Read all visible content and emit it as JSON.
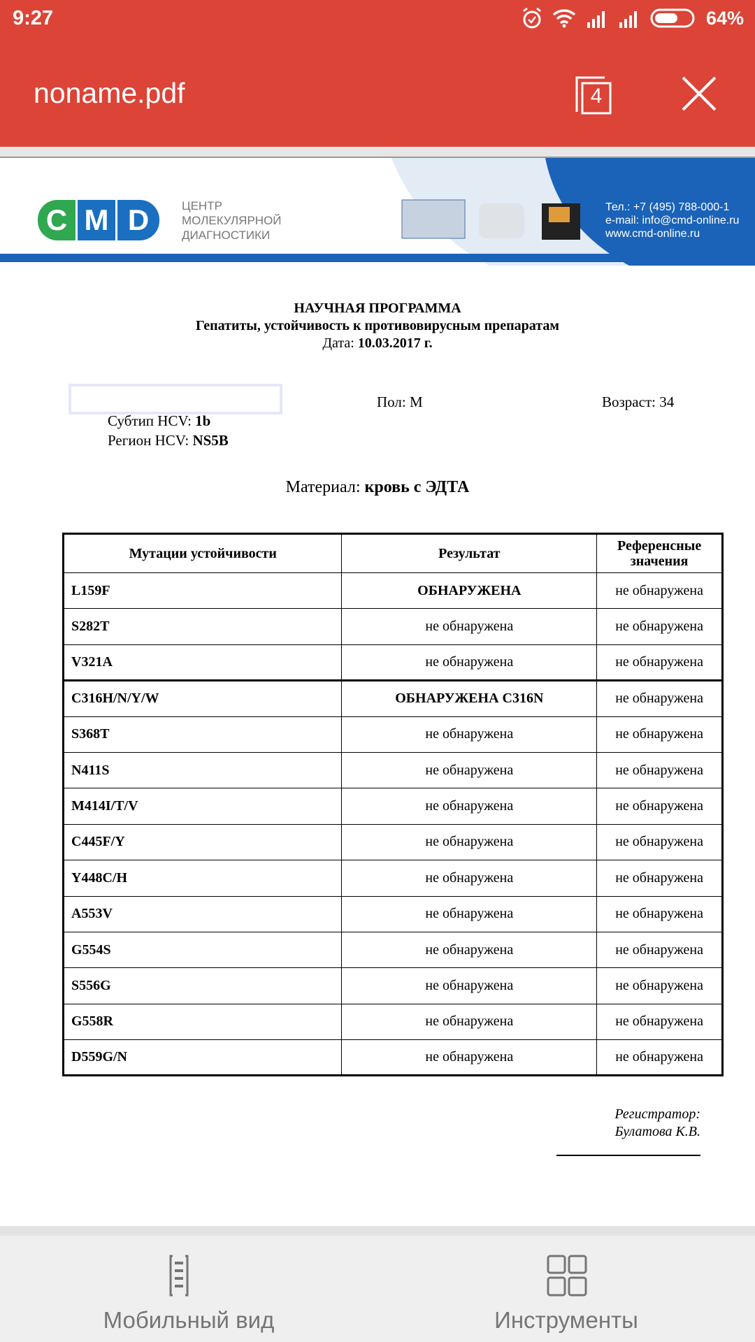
{
  "status_bar": {
    "time": "9:27",
    "battery": "64%",
    "icons": [
      "alarm-icon",
      "wifi-icon",
      "signal-icon",
      "signal-icon",
      "battery-icon"
    ]
  },
  "header": {
    "title": "noname.pdf",
    "page_count": "4",
    "bg_color": "#db4437"
  },
  "banner": {
    "logo": "CMD",
    "org_line1": "ЦЕНТР",
    "org_line2": "МОЛЕКУЛЯРНОЙ",
    "org_line3": "ДИАГНОСТИКИ",
    "phone": "Тел.: +7 (495) 788-000-1",
    "email": "e-mail: info@cmd-online.ru",
    "site": "www.cmd-online.ru"
  },
  "document": {
    "heading": "НАУЧНАЯ ПРОГРАММА",
    "subheading": "Гепатиты, устойчивость к противовирусным препаратам",
    "date_label": "Дата: ",
    "date_value": "10.03.2017 г.",
    "sex_label": "Пол: М",
    "age_label": "Возраст: 34",
    "subtype_label": "Субтип HCV: ",
    "subtype_value": "1b",
    "region_label": "Регион HCV: ",
    "region_value": "NS5B",
    "material_label": "Материал: ",
    "material_value": "кровь с ЭДТА",
    "table": {
      "headers": [
        "Мутации устойчивости",
        "Результат",
        "Референсные значения"
      ],
      "rows": [
        [
          "L159F",
          "ОБНАРУЖЕНА",
          "не обнаружена"
        ],
        [
          "S282T",
          "не обнаружена",
          "не обнаружена"
        ],
        [
          "V321A",
          "не обнаружена",
          "не обнаружена"
        ],
        [
          "C316H/N/Y/W",
          "ОБНАРУЖЕНА C316N",
          "не обнаружена"
        ],
        [
          "S368T",
          "не обнаружена",
          "не обнаружена"
        ],
        [
          "N411S",
          "не обнаружена",
          "не обнаружена"
        ],
        [
          "M414I/T/V",
          "не обнаружена",
          "не обнаружена"
        ],
        [
          "C445F/Y",
          "не обнаружена",
          "не обнаружена"
        ],
        [
          "Y448C/H",
          "не обнаружена",
          "не обнаружена"
        ],
        [
          "A553V",
          "не обнаружена",
          "не обнаружена"
        ],
        [
          "G554S",
          "не обнаружена",
          "не обнаружена"
        ],
        [
          "S556G",
          "не обнаружена",
          "не обнаружена"
        ],
        [
          "G558R",
          "не обнаружена",
          "не обнаружена"
        ],
        [
          "D559G/N",
          "не обнаружена",
          "не обнаружена"
        ]
      ]
    },
    "registrar_label": "Регистратор:",
    "registrar_name": "Булатова К.В."
  },
  "bottom_bar": {
    "mobile_view": "Мобильный вид",
    "tools": "Инструменты"
  }
}
